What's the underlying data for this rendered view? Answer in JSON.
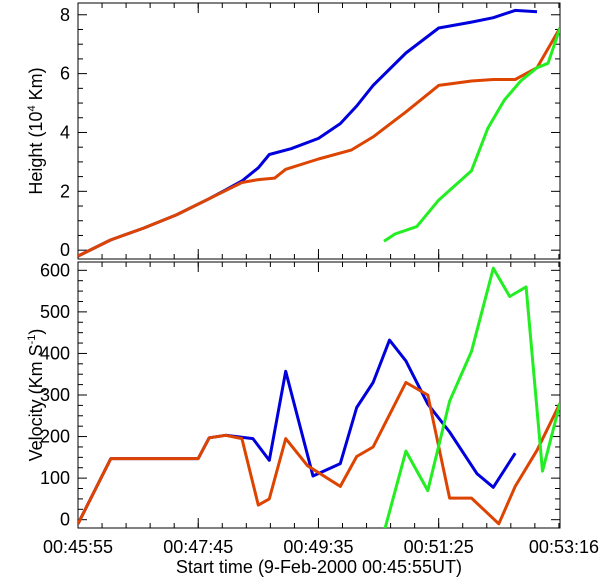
{
  "chart_data": [
    {
      "type": "line",
      "ylabel_parts": {
        "pre": "Height (10",
        "sup": "4",
        "post": " Km)"
      },
      "xlabel": "",
      "ylim": [
        -0.3,
        8.4
      ],
      "xlim": [
        0,
        441
      ],
      "yticks": [
        0,
        2,
        4,
        6,
        8
      ],
      "grid": false,
      "series": [
        {
          "color": "#0000dd",
          "x": [
            0,
            30,
            60,
            90,
            120,
            135,
            150,
            165,
            175,
            195,
            220,
            240,
            255,
            270,
            300,
            330,
            360,
            380,
            400,
            420
          ],
          "y": [
            -0.2,
            0.35,
            0.75,
            1.2,
            1.75,
            2.05,
            2.35,
            2.8,
            3.25,
            3.45,
            3.8,
            4.3,
            4.9,
            5.6,
            6.7,
            7.55,
            7.75,
            7.9,
            8.15,
            8.1
          ]
        },
        {
          "color": "#dd4400",
          "x": [
            0,
            30,
            60,
            90,
            120,
            150,
            165,
            180,
            190,
            220,
            250,
            270,
            300,
            330,
            360,
            380,
            400,
            420,
            441
          ],
          "y": [
            -0.2,
            0.35,
            0.75,
            1.2,
            1.75,
            2.3,
            2.4,
            2.45,
            2.75,
            3.1,
            3.4,
            3.85,
            4.7,
            5.6,
            5.75,
            5.8,
            5.8,
            6.2,
            7.55
          ]
        },
        {
          "color": "#22ee22",
          "x": [
            280,
            290,
            310,
            330,
            360,
            375,
            390,
            405,
            420,
            430,
            441
          ],
          "y": [
            0.3,
            0.55,
            0.8,
            1.7,
            2.7,
            4.15,
            5.1,
            5.75,
            6.2,
            6.35,
            7.55
          ]
        }
      ]
    },
    {
      "type": "line",
      "ylabel_parts": {
        "pre": "Velocity (Km S",
        "sup": "-1",
        "post": ")"
      },
      "xlabel": "Start time (9-Feb-2000 00:45:55UT)",
      "ylim": [
        -20,
        620
      ],
      "xlim": [
        0,
        441
      ],
      "yticks": [
        0,
        100,
        200,
        300,
        400,
        500,
        600
      ],
      "xtick_values": [
        0,
        110,
        220,
        330,
        441
      ],
      "xtick_labels": [
        "00:45:55",
        "00:47:45",
        "00:49:35",
        "00:51:25",
        "00:53:16"
      ],
      "grid": false,
      "series": [
        {
          "color": "#0000dd",
          "x": [
            0,
            30,
            60,
            90,
            110,
            120,
            135,
            160,
            175,
            190,
            215,
            240,
            255,
            270,
            285,
            300,
            320,
            340,
            365,
            380,
            400
          ],
          "y": [
            -10,
            147,
            147,
            147,
            147,
            197,
            203,
            195,
            143,
            357,
            105,
            135,
            270,
            330,
            432,
            382,
            278,
            211,
            111,
            78,
            160
          ]
        },
        {
          "color": "#dd4400",
          "x": [
            0,
            30,
            60,
            90,
            110,
            120,
            135,
            150,
            165,
            175,
            190,
            210,
            240,
            255,
            270,
            300,
            320,
            340,
            350,
            360,
            385,
            400,
            420,
            441
          ],
          "y": [
            -10,
            147,
            147,
            147,
            147,
            197,
            203,
            195,
            35,
            50,
            195,
            130,
            80,
            152,
            175,
            330,
            300,
            52,
            52,
            52,
            -10,
            80,
            167,
            280
          ]
        },
        {
          "color": "#22ee22",
          "x": [
            280,
            300,
            320,
            340,
            360,
            380,
            395,
            410,
            425,
            441
          ],
          "y": [
            -30,
            165,
            70,
            285,
            405,
            605,
            537,
            560,
            117,
            280
          ]
        }
      ]
    }
  ]
}
